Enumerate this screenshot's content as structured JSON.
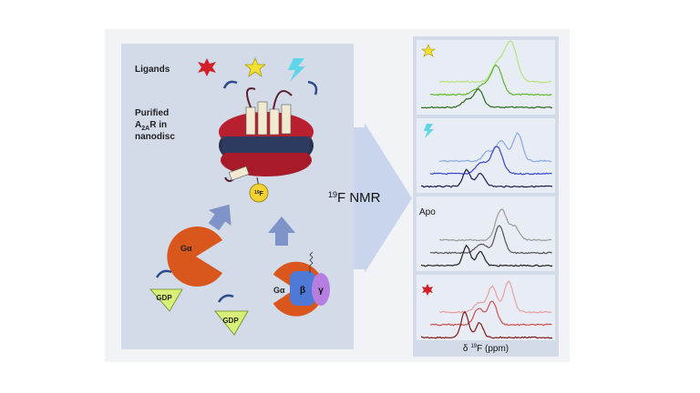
{
  "left_panel": {
    "ligands": "Ligands",
    "receptor": {
      "line1": "Purified",
      "line2_main": "A",
      "line2_sub": "2A",
      "line2_rest": "R in",
      "line3": "nanodisc"
    },
    "fluorine_tag": {
      "sup": "19",
      "main": "F"
    },
    "g_alpha_free": "Gα",
    "gdp_free": "GDP",
    "g_alpha_bound": "Gα",
    "g_beta": "β",
    "g_gamma": "γ",
    "gdp_bound": "GDP"
  },
  "center": {
    "sup": "19",
    "main": "F NMR"
  },
  "right_panel": {
    "apo": "Apo",
    "axis_label": {
      "prefix": "δ",
      "sup": "19",
      "suffix": "F (ppm)"
    }
  }
}
